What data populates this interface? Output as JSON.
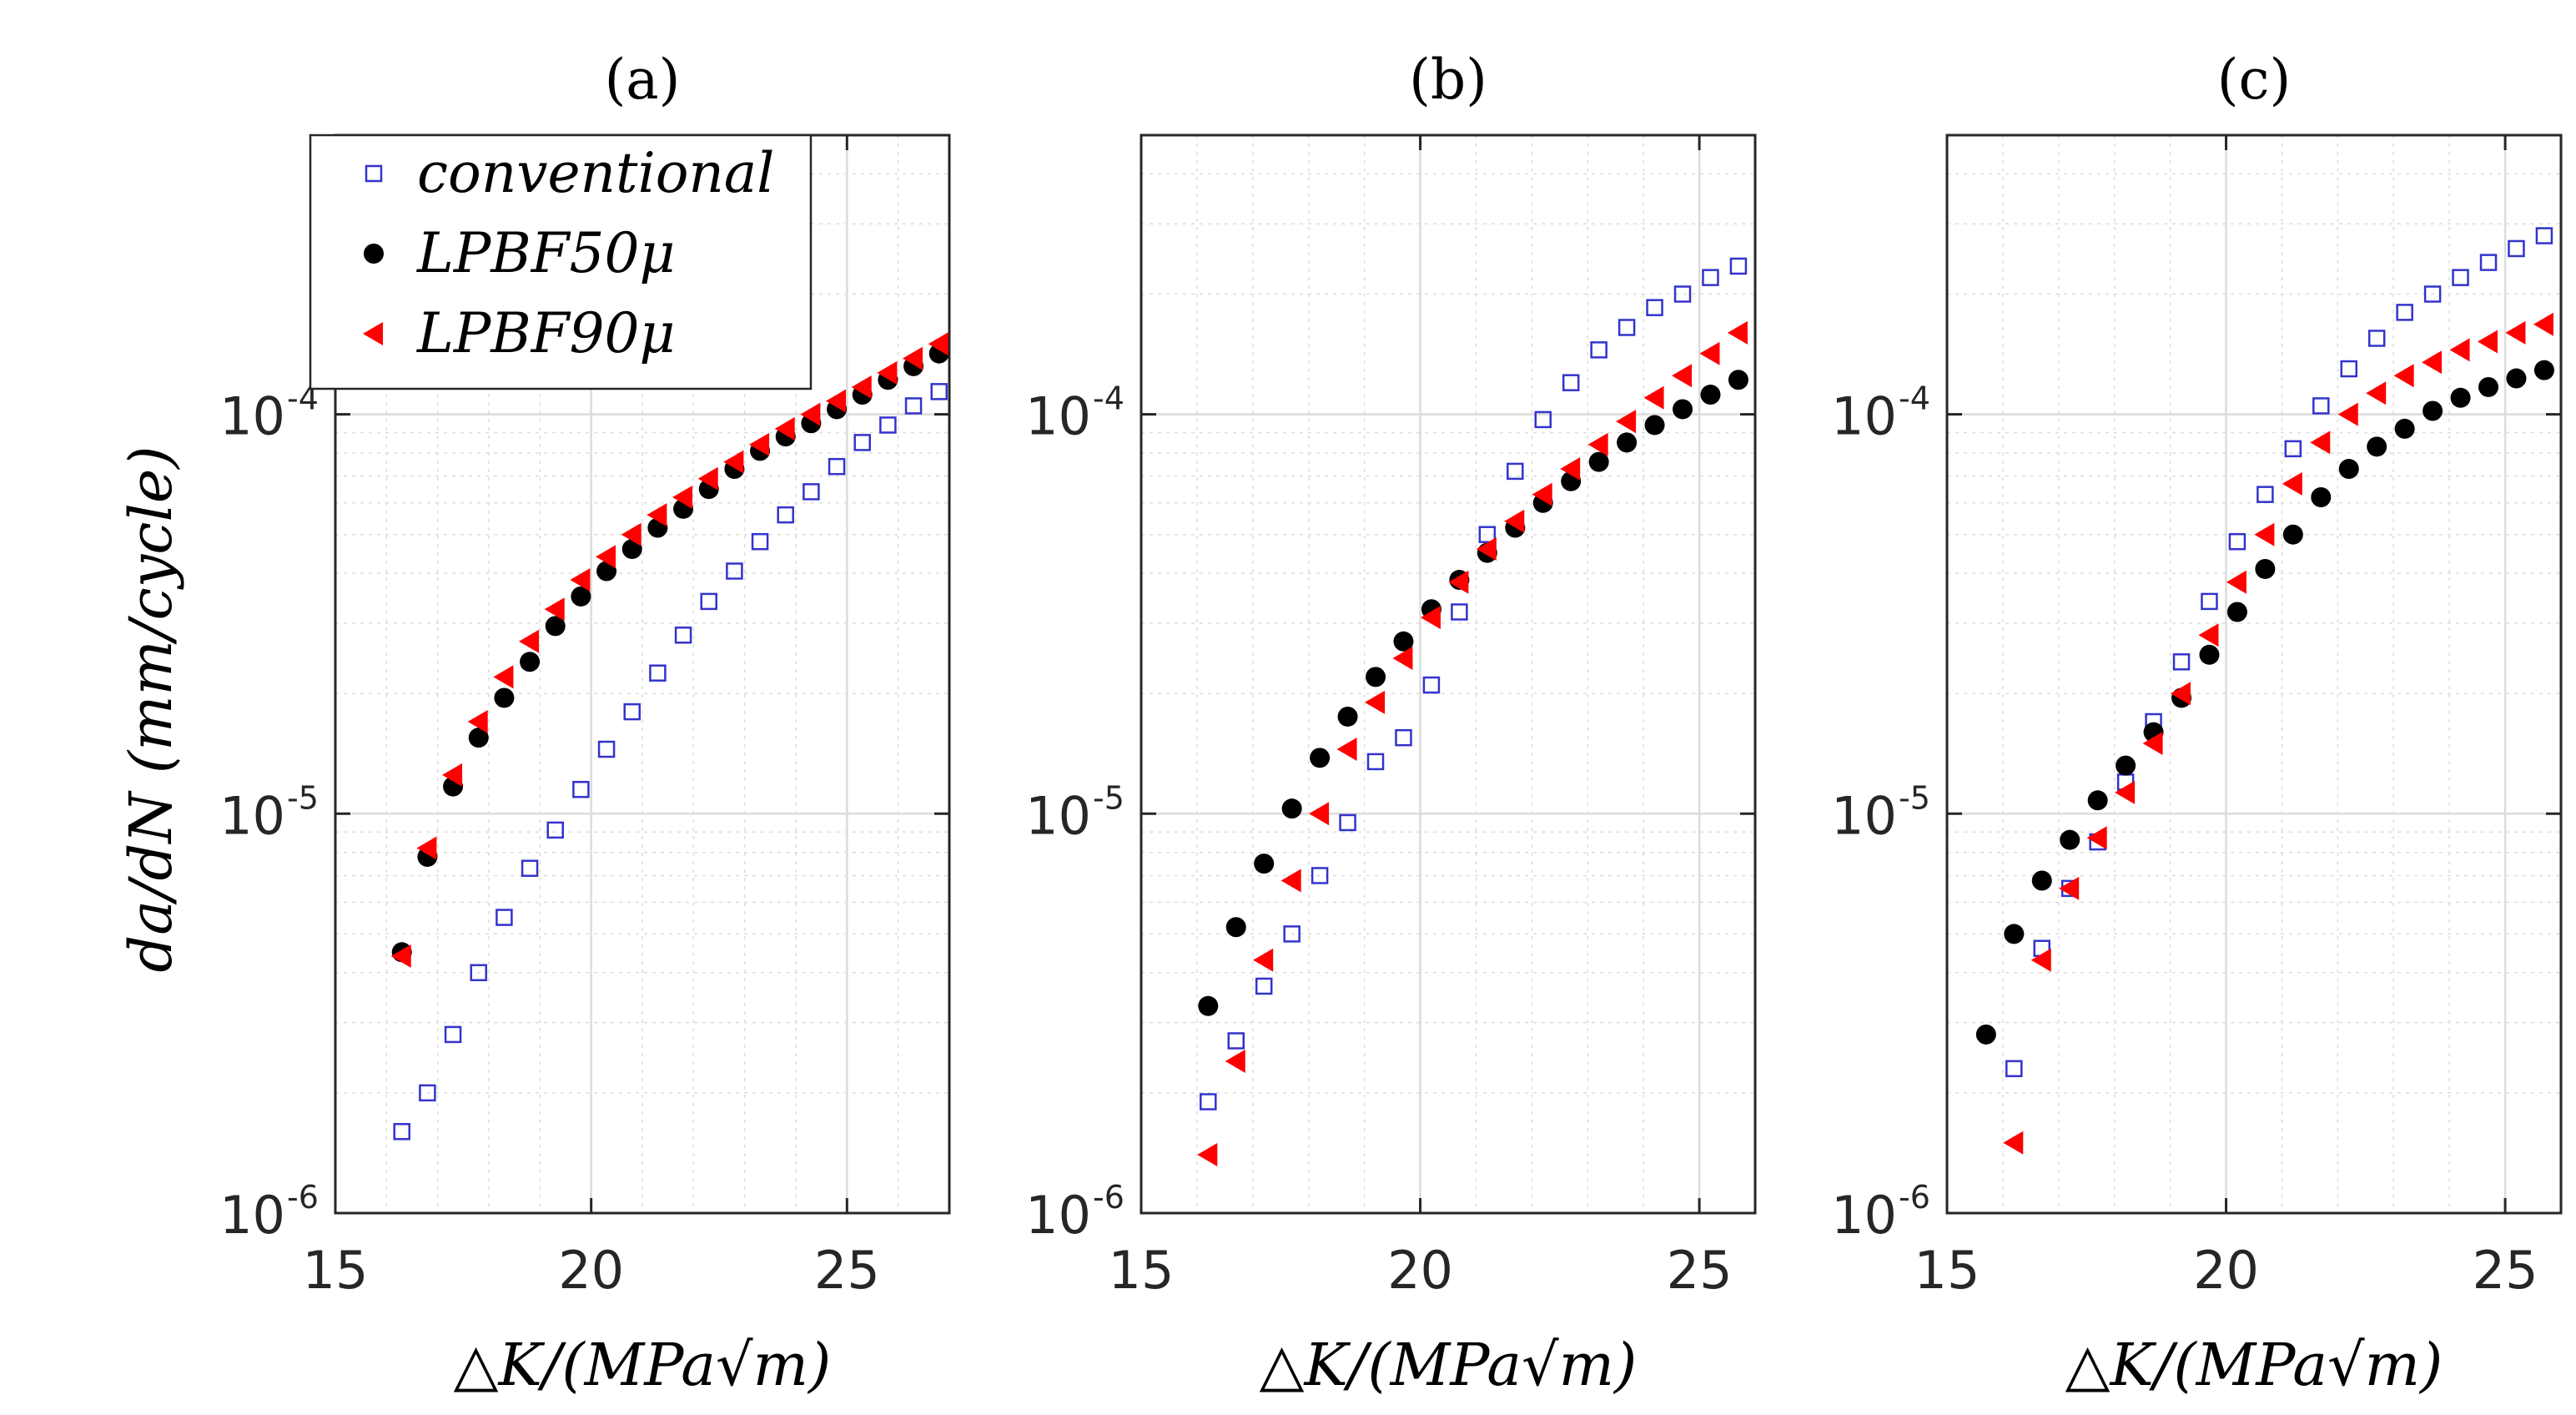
{
  "figure": {
    "ylabel": "da/dN (mm/cycle)",
    "xlabel": "△K/(MPa√m)"
  },
  "legend": {
    "location": "top-left of panel (a)",
    "entries": [
      {
        "label": "conventional",
        "marker": "open-square",
        "color": "#3333cc"
      },
      {
        "label": "LPBF50μ",
        "marker": "filled-circle",
        "color": "#000000"
      },
      {
        "label": "LPBF90μ",
        "marker": "filled-left-triangle",
        "color": "#ff0000"
      }
    ]
  },
  "colors": {
    "conventional": "#3333cc",
    "lpbf50": "#000000",
    "lpbf90": "#ff0000",
    "grid": "#dcdcdc",
    "axis": "#262626"
  },
  "chart_data": [
    {
      "type": "scatter",
      "title": "(a)",
      "xlabel": "△K/(MPa√m)",
      "ylabel": "da/dN (mm/cycle)",
      "xlim": [
        15,
        27
      ],
      "ylim": [
        1e-06,
        0.0005
      ],
      "yscale": "log",
      "grid": true,
      "xticks": [
        15,
        20,
        25
      ],
      "series": [
        {
          "name": "conventional",
          "x": [
            16.3,
            16.8,
            17.3,
            17.8,
            18.3,
            18.8,
            19.3,
            19.8,
            20.3,
            20.8,
            21.3,
            21.8,
            22.3,
            22.8,
            23.3,
            23.8,
            24.3,
            24.8,
            25.3,
            25.8,
            26.3,
            26.8
          ],
          "y": [
            1.6e-06,
            2e-06,
            2.8e-06,
            4e-06,
            5.5e-06,
            7.3e-06,
            9.1e-06,
            1.15e-05,
            1.45e-05,
            1.8e-05,
            2.25e-05,
            2.8e-05,
            3.4e-05,
            4.05e-05,
            4.8e-05,
            5.6e-05,
            6.4e-05,
            7.4e-05,
            8.5e-05,
            9.4e-05,
            0.000105,
            0.000114
          ]
        },
        {
          "name": "LPBF50μ",
          "x": [
            16.3,
            16.8,
            17.3,
            17.8,
            18.3,
            18.8,
            19.3,
            19.8,
            20.3,
            20.8,
            21.3,
            21.8,
            22.3,
            22.8,
            23.3,
            23.8,
            24.3,
            24.8,
            25.3,
            25.8,
            26.3,
            26.8
          ],
          "y": [
            4.5e-06,
            7.8e-06,
            1.17e-05,
            1.55e-05,
            1.95e-05,
            2.4e-05,
            2.95e-05,
            3.5e-05,
            4.05e-05,
            4.6e-05,
            5.2e-05,
            5.8e-05,
            6.5e-05,
            7.3e-05,
            8.1e-05,
            8.8e-05,
            9.5e-05,
            0.000103,
            0.000112,
            0.000122,
            0.000132,
            0.000142
          ]
        },
        {
          "name": "LPBF90μ",
          "x": [
            16.3,
            16.8,
            17.3,
            17.8,
            18.3,
            18.8,
            19.3,
            19.8,
            20.3,
            20.8,
            21.3,
            21.8,
            22.3,
            22.8,
            23.3,
            23.8,
            24.3,
            24.8,
            25.3,
            25.8,
            26.3,
            26.8
          ],
          "y": [
            4.4e-06,
            8.2e-06,
            1.25e-05,
            1.7e-05,
            2.2e-05,
            2.7e-05,
            3.25e-05,
            3.85e-05,
            4.4e-05,
            5e-05,
            5.6e-05,
            6.2e-05,
            6.9e-05,
            7.6e-05,
            8.4e-05,
            9.2e-05,
            0.0001,
            0.000108,
            0.000117,
            0.000127,
            0.000138,
            0.00015
          ]
        }
      ]
    },
    {
      "type": "scatter",
      "title": "(b)",
      "xlabel": "△K/(MPa√m)",
      "ylabel": "",
      "xlim": [
        15,
        26
      ],
      "ylim": [
        1e-06,
        0.0005
      ],
      "yscale": "log",
      "grid": true,
      "xticks": [
        15,
        20,
        25
      ],
      "series": [
        {
          "name": "conventional",
          "x": [
            16.2,
            16.7,
            17.2,
            17.7,
            18.2,
            18.7,
            19.2,
            19.7,
            20.2,
            20.7,
            21.2,
            21.7,
            22.2,
            22.7,
            23.2,
            23.7,
            24.2,
            24.7,
            25.2,
            25.7
          ],
          "y": [
            1.9e-06,
            2.7e-06,
            3.7e-06,
            5e-06,
            7e-06,
            9.5e-06,
            1.35e-05,
            1.55e-05,
            2.1e-05,
            3.2e-05,
            5e-05,
            7.2e-05,
            9.7e-05,
            0.00012,
            0.000145,
            0.000165,
            0.000185,
            0.0002,
            0.00022,
            0.000235
          ]
        },
        {
          "name": "LPBF50μ",
          "x": [
            16.2,
            16.7,
            17.2,
            17.7,
            18.2,
            18.7,
            19.2,
            19.7,
            20.2,
            20.7,
            21.2,
            21.7,
            22.2,
            22.7,
            23.2,
            23.7,
            24.2,
            24.7,
            25.2,
            25.7
          ],
          "y": [
            3.3e-06,
            5.2e-06,
            7.5e-06,
            1.03e-05,
            1.38e-05,
            1.75e-05,
            2.2e-05,
            2.7e-05,
            3.25e-05,
            3.85e-05,
            4.5e-05,
            5.2e-05,
            6e-05,
            6.8e-05,
            7.6e-05,
            8.5e-05,
            9.4e-05,
            0.000103,
            0.000112,
            0.000122
          ]
        },
        {
          "name": "LPBF90μ",
          "x": [
            16.2,
            16.7,
            17.2,
            17.7,
            18.2,
            18.7,
            19.2,
            19.7,
            20.2,
            20.7,
            21.2,
            21.7,
            22.2,
            22.7,
            23.2,
            23.7,
            24.2,
            24.7,
            25.2,
            25.7
          ],
          "y": [
            1.4e-06,
            2.4e-06,
            4.3e-06,
            6.8e-06,
            1e-05,
            1.45e-05,
            1.9e-05,
            2.45e-05,
            3.1e-05,
            3.8e-05,
            4.6e-05,
            5.4e-05,
            6.3e-05,
            7.3e-05,
            8.4e-05,
            9.6e-05,
            0.00011,
            0.000125,
            0.000142,
            0.00016
          ]
        }
      ]
    },
    {
      "type": "scatter",
      "title": "(c)",
      "xlabel": "△K/(MPa√m)",
      "ylabel": "",
      "xlim": [
        15,
        26
      ],
      "ylim": [
        1e-06,
        0.0005
      ],
      "yscale": "log",
      "grid": true,
      "xticks": [
        15,
        20,
        25
      ],
      "series": [
        {
          "name": "conventional",
          "x": [
            16.2,
            16.7,
            17.2,
            17.7,
            18.2,
            18.7,
            19.2,
            19.7,
            20.2,
            20.7,
            21.2,
            21.7,
            22.2,
            22.7,
            23.2,
            23.7,
            24.2,
            24.7,
            25.2,
            25.7
          ],
          "y": [
            2.3e-06,
            4.6e-06,
            6.5e-06,
            8.5e-06,
            1.2e-05,
            1.7e-05,
            2.4e-05,
            3.4e-05,
            4.8e-05,
            6.3e-05,
            8.2e-05,
            0.000105,
            0.00013,
            0.000155,
            0.00018,
            0.0002,
            0.00022,
            0.00024,
            0.00026,
            0.00028
          ]
        },
        {
          "name": "LPBF50μ",
          "x": [
            15.7,
            16.2,
            16.7,
            17.2,
            17.7,
            18.2,
            18.7,
            19.2,
            19.7,
            20.2,
            20.7,
            21.2,
            21.7,
            22.2,
            22.7,
            23.2,
            23.7,
            24.2,
            24.7,
            25.2,
            25.7
          ],
          "y": [
            2.8e-06,
            5e-06,
            6.8e-06,
            8.6e-06,
            1.08e-05,
            1.32e-05,
            1.6e-05,
            1.95e-05,
            2.5e-05,
            3.2e-05,
            4.1e-05,
            5e-05,
            6.2e-05,
            7.3e-05,
            8.3e-05,
            9.2e-05,
            0.000102,
            0.00011,
            0.000117,
            0.000123,
            0.000129
          ]
        },
        {
          "name": "LPBF90μ",
          "x": [
            16.2,
            16.7,
            17.2,
            17.7,
            18.2,
            18.7,
            19.2,
            19.7,
            20.2,
            20.7,
            21.2,
            21.7,
            22.2,
            22.7,
            23.2,
            23.7,
            24.2,
            24.7,
            25.2,
            25.7
          ],
          "y": [
            1.5e-06,
            4.3e-06,
            6.5e-06,
            8.7e-06,
            1.13e-05,
            1.5e-05,
            2e-05,
            2.8e-05,
            3.8e-05,
            5e-05,
            6.7e-05,
            8.5e-05,
            0.0001,
            0.000113,
            0.000125,
            0.000135,
            0.000145,
            0.000152,
            0.00016,
            0.000168
          ]
        }
      ]
    }
  ]
}
